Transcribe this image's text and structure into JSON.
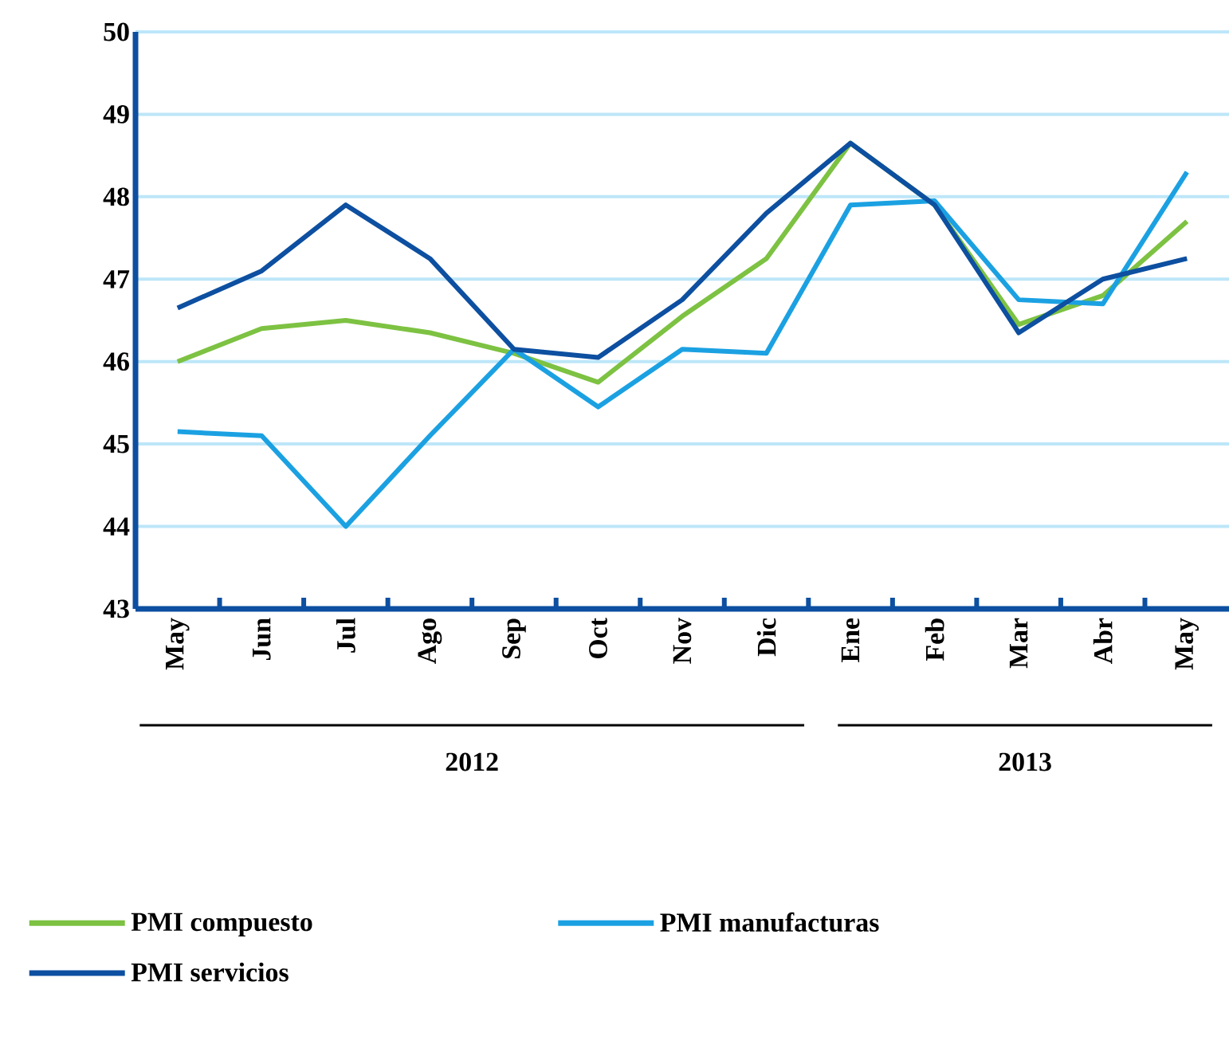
{
  "chart_data": {
    "type": "line",
    "categories": [
      "May",
      "Jun",
      "Jul",
      "Ago",
      "Sep",
      "Oct",
      "Nov",
      "Dic",
      "Ene",
      "Feb",
      "Mar",
      "Abr",
      "May"
    ],
    "series": [
      {
        "name": "PMI compuesto",
        "color": "#7dc242",
        "values": [
          46.0,
          46.4,
          46.5,
          46.35,
          46.1,
          45.75,
          46.55,
          47.25,
          48.65,
          47.9,
          46.45,
          46.8,
          47.7
        ]
      },
      {
        "name": "PMI manufacturas",
        "color": "#1ba1e2",
        "values": [
          45.15,
          45.1,
          44.0,
          45.1,
          46.15,
          45.45,
          46.15,
          46.1,
          47.9,
          47.95,
          46.75,
          46.7,
          48.3
        ]
      },
      {
        "name": "PMI servicios",
        "color": "#0d4fa0",
        "values": [
          46.65,
          47.1,
          47.9,
          47.25,
          46.15,
          46.05,
          46.75,
          47.8,
          48.65,
          47.9,
          46.35,
          47.0,
          47.25
        ]
      }
    ],
    "ylim": [
      43,
      50
    ],
    "yticks": [
      43,
      44,
      45,
      46,
      47,
      48,
      49,
      50
    ],
    "grid": "y",
    "legend": "bottom",
    "marker": "none",
    "line_style": "solid",
    "annotations": [
      "2012",
      "2013"
    ]
  }
}
